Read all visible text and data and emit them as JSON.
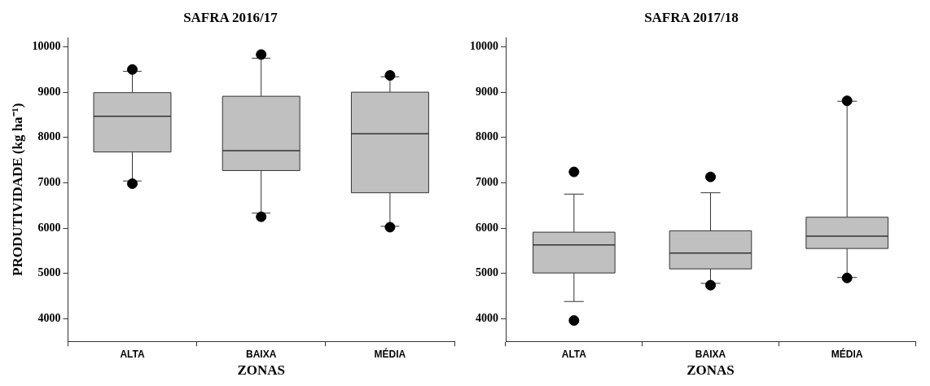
{
  "chart_data": [
    {
      "type": "box",
      "title": "SAFRA 2016/17",
      "xlabel": "ZONAS",
      "ylabel": "PRODUTIVIDADE (kg ha⁻¹)",
      "categories": [
        "ALTA",
        "BAIXA",
        "MÉDIA"
      ],
      "color": "#c0c0c0",
      "ylim": [
        3500,
        10200
      ],
      "yticks": [
        4000,
        5000,
        6000,
        7000,
        8000,
        9000,
        10000
      ],
      "grid": false,
      "legend": false,
      "boxes": [
        {
          "low": 7040,
          "q1": 7680,
          "median": 8470,
          "q3": 8990,
          "high": 9460,
          "outliers": [
            9500,
            6980
          ]
        },
        {
          "low": 6330,
          "q1": 7270,
          "median": 7710,
          "q3": 8910,
          "high": 9750,
          "outliers": [
            9830,
            6250
          ]
        },
        {
          "low": 6040,
          "q1": 6780,
          "median": 8080,
          "q3": 9000,
          "high": 9340,
          "outliers": [
            9370,
            6020
          ]
        }
      ]
    },
    {
      "type": "box",
      "title": "SAFRA 2017/18",
      "xlabel": "ZONAS",
      "categories": [
        "ALTA",
        "BAIXA",
        "MÉDIA"
      ],
      "color": "#c0c0c0",
      "ylim": [
        3500,
        10200
      ],
      "yticks": [
        4000,
        5000,
        6000,
        7000,
        8000,
        9000,
        10000
      ],
      "grid": false,
      "legend": false,
      "boxes": [
        {
          "low": 4380,
          "q1": 5010,
          "median": 5630,
          "q3": 5910,
          "high": 6750,
          "outliers": [
            7240,
            3960
          ]
        },
        {
          "low": 4780,
          "q1": 5100,
          "median": 5450,
          "q3": 5940,
          "high": 6780,
          "outliers": [
            7130,
            4740
          ]
        },
        {
          "low": 4910,
          "q1": 5550,
          "median": 5820,
          "q3": 6240,
          "high": 8800,
          "outliers": [
            8810,
            4900
          ]
        }
      ]
    }
  ]
}
